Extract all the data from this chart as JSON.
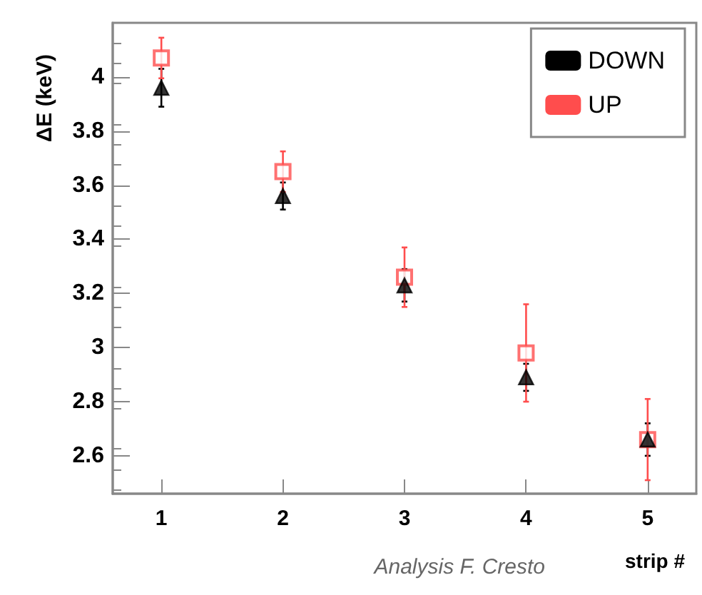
{
  "chart_data": {
    "type": "scatter",
    "xlabel": "strip #",
    "ylabel": "ΔE (keV)",
    "x": [
      1,
      2,
      3,
      4,
      5
    ],
    "xlim": [
      0.6,
      5.4
    ],
    "xticks": [
      1,
      2,
      3,
      4,
      5
    ],
    "ylim": [
      2.46,
      4.2
    ],
    "yticks": [
      2.6,
      2.8,
      3,
      3.2,
      3.4,
      3.6,
      3.8,
      4
    ],
    "legend": "top right",
    "grid": false,
    "series": [
      {
        "name": "DOWN",
        "color": "#000000",
        "marker": "triangle",
        "values": [
          3.96,
          3.56,
          3.23,
          2.89,
          2.66
        ],
        "errors": [
          0.07,
          0.05,
          0.06,
          0.05,
          0.06
        ]
      },
      {
        "name": "UP",
        "color": "#ff4d4d",
        "marker": "square",
        "values": [
          4.07,
          3.65,
          3.26,
          2.98,
          2.66
        ],
        "errors": [
          0.075,
          0.075,
          0.11,
          0.18,
          0.15
        ]
      }
    ],
    "annotations": [
      "Analysis F. Cresto"
    ]
  }
}
